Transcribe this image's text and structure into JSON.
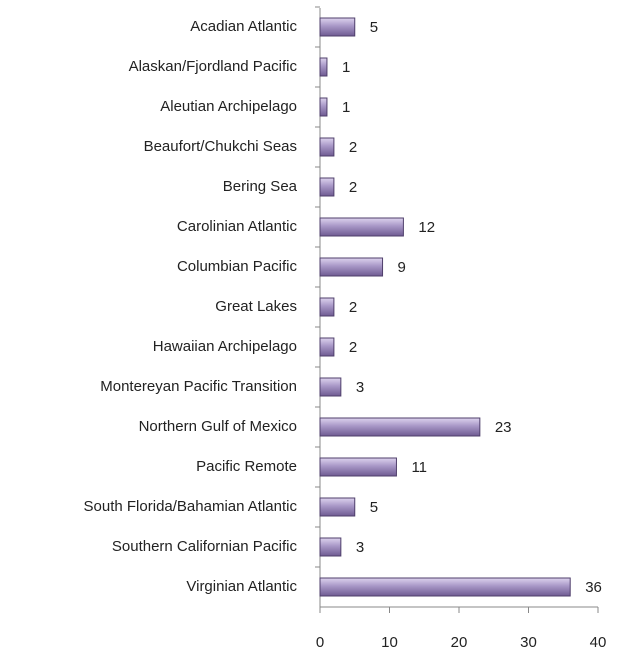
{
  "chart_data": {
    "type": "bar",
    "orientation": "horizontal",
    "categories": [
      "Acadian Atlantic",
      "Alaskan/Fjordland Pacific",
      "Aleutian Archipelago",
      "Beaufort/Chukchi Seas",
      "Bering Sea",
      "Carolinian Atlantic",
      "Columbian Pacific",
      "Great Lakes",
      "Hawaiian Archipelago",
      "Montereyan Pacific Transition",
      "Northern Gulf of Mexico",
      "Pacific Remote",
      "South Florida/Bahamian Atlantic",
      "Southern Californian Pacific",
      "Virginian Atlantic"
    ],
    "values": [
      5,
      1,
      1,
      2,
      2,
      12,
      9,
      2,
      2,
      3,
      23,
      11,
      5,
      3,
      36
    ],
    "color": "#a796c6",
    "xlim": [
      0,
      40
    ],
    "xticks": [
      0,
      10,
      20,
      30,
      40
    ],
    "grid": false
  }
}
